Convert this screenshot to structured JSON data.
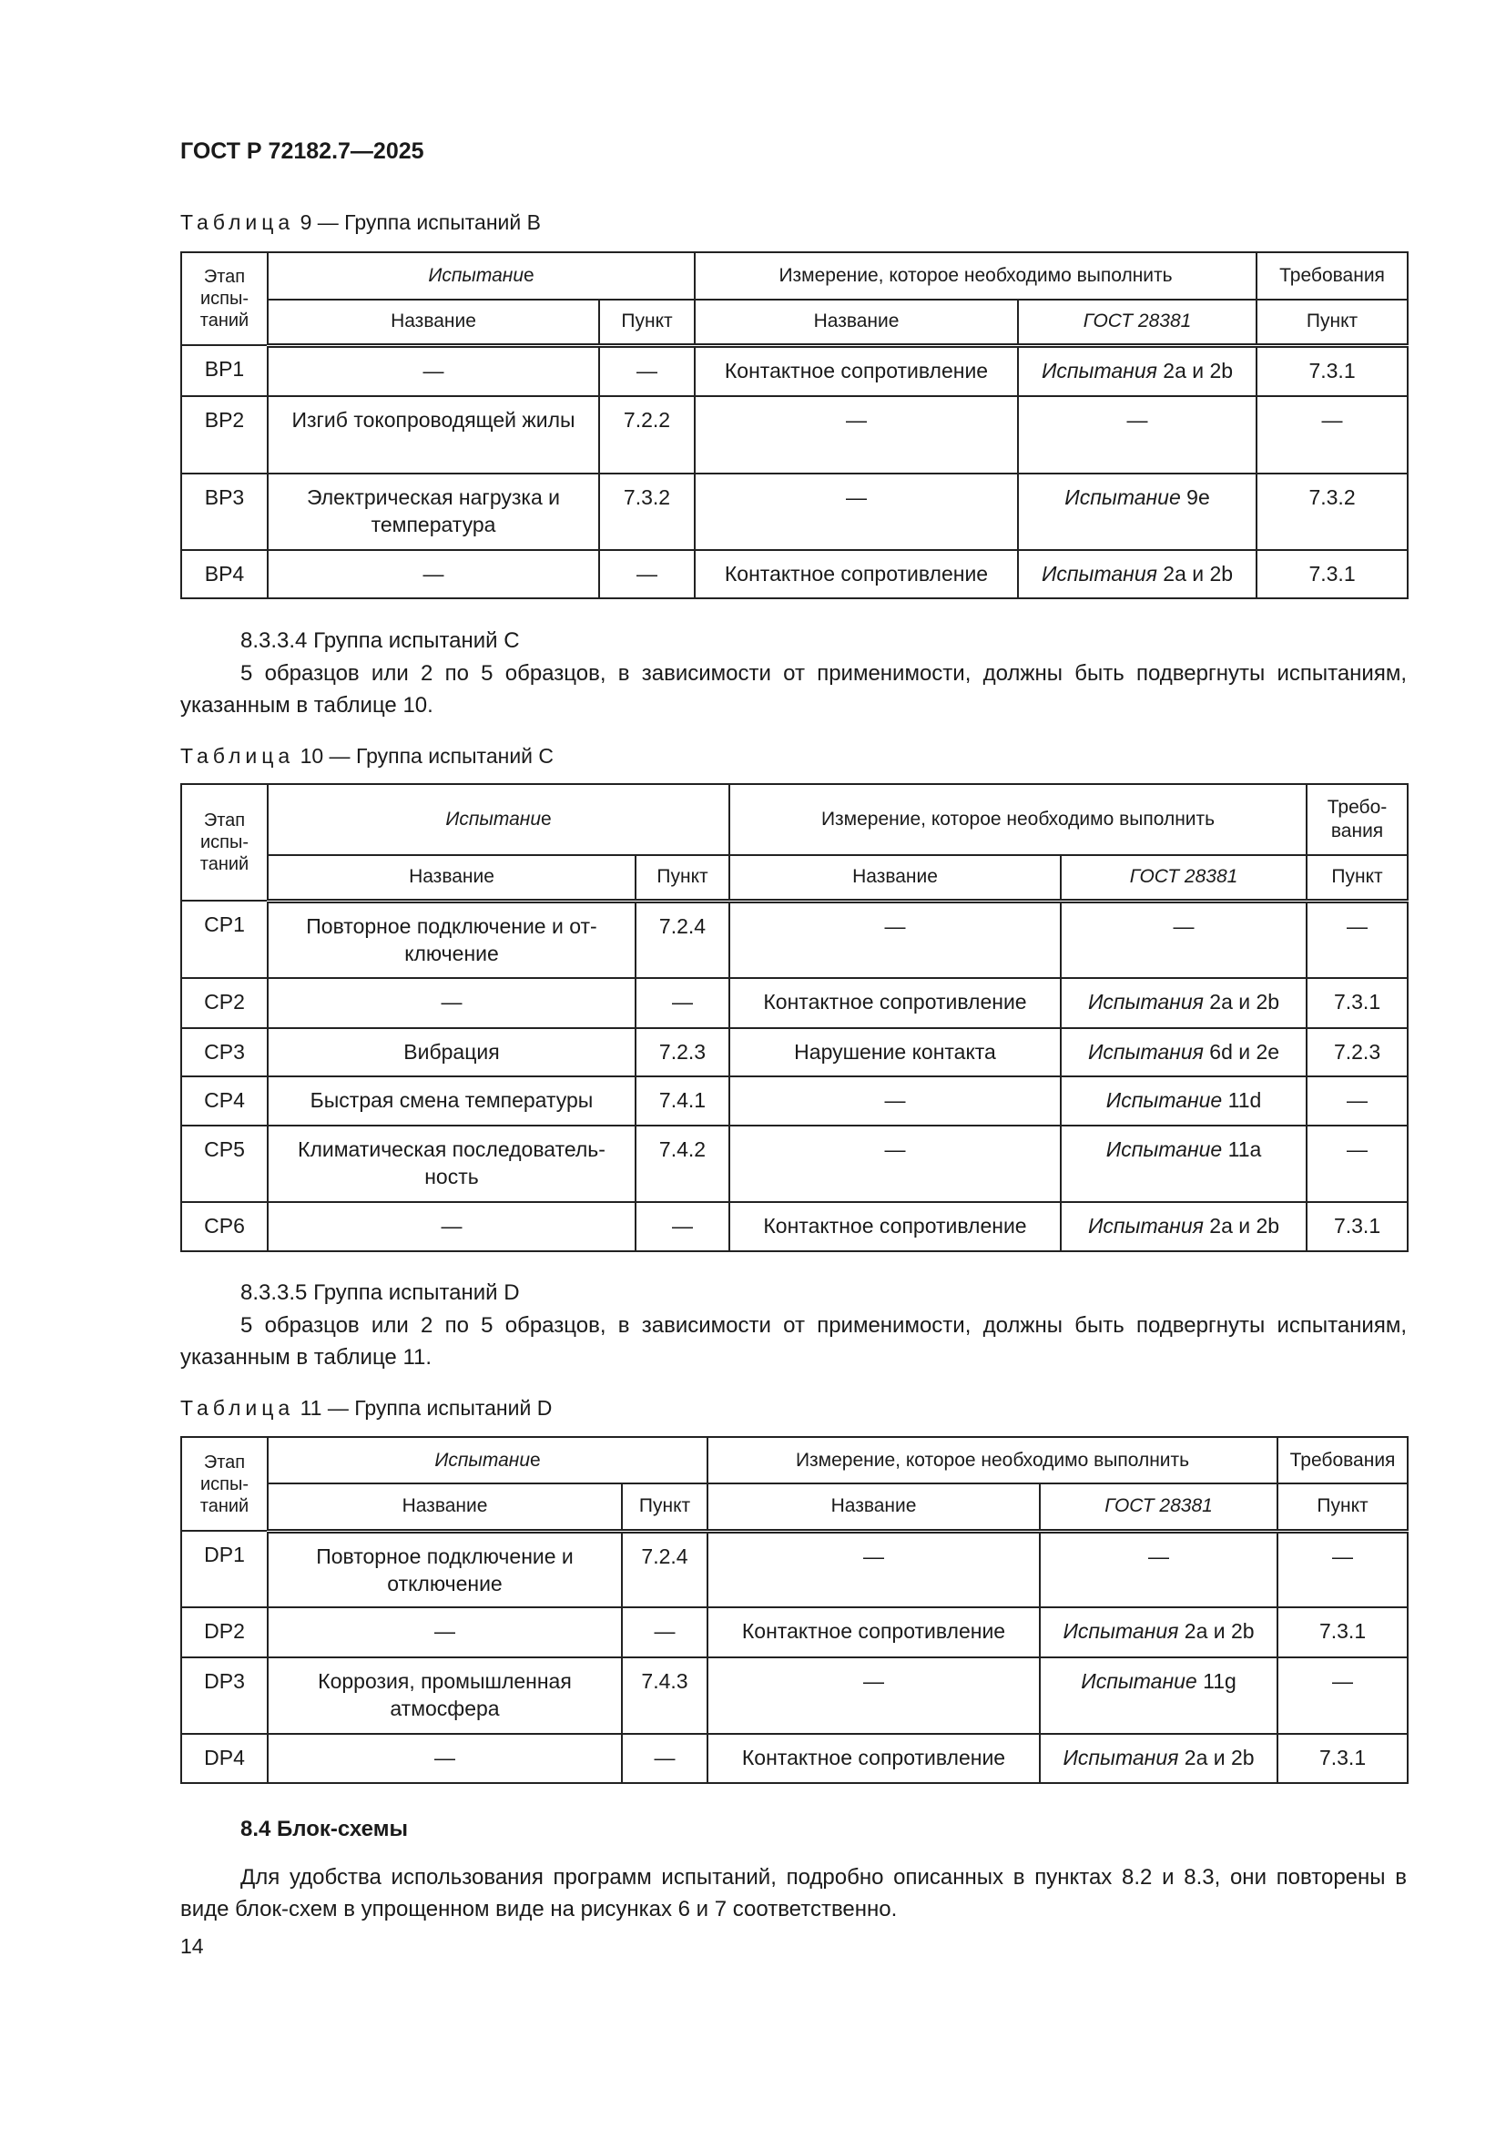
{
  "header": "ГОСТ Р 72182.7—2025",
  "headers": {
    "stage": "Этап испы-таний",
    "test": "Испытание",
    "measure": "Измерение, которое необходимо выполнить",
    "req": "Требования",
    "req_short": "Требо-вания",
    "name": "Название",
    "clause": "Пункт",
    "gost": "ГОСТ 28381"
  },
  "table9": {
    "caption_prefix": "Таблица",
    "caption": "9 — Группа испытаний B",
    "rows": [
      [
        "BP1",
        "—",
        "—",
        "Контактное сопротивление",
        "Испытания 2a и 2b",
        "7.3.1"
      ],
      [
        "BP2",
        "Изгиб токопроводящей жилы",
        "7.2.2",
        "—",
        "—",
        "—"
      ],
      [
        "BP3",
        "Электрическая нагрузка и температура",
        "7.3.2",
        "—",
        "Испытание 9e",
        "7.3.2"
      ],
      [
        "BP4",
        "—",
        "—",
        "Контактное сопротивление",
        "Испытания 2a и 2b",
        "7.3.1"
      ]
    ]
  },
  "sec_c": {
    "title": "8.3.3.4  Группа испытаний C",
    "text": "5 образцов или 2 по 5 образцов, в зависимости от применимости, должны быть подвергнуты испытаниям, указанным в таблице 10."
  },
  "table10": {
    "caption_prefix": "Таблица",
    "caption": "10 — Группа испытаний C",
    "rows": [
      [
        "CP1",
        "Повторное подключение и от-ключение",
        "7.2.4",
        "—",
        "—",
        "—"
      ],
      [
        "CP2",
        "—",
        "—",
        "Контактное сопротивление",
        "Испытания 2a и 2b",
        "7.3.1"
      ],
      [
        "CP3",
        "Вибрация",
        "7.2.3",
        "Нарушение контакта",
        "Испытания 6d и 2e",
        "7.2.3"
      ],
      [
        "CP4",
        "Быстрая смена температуры",
        "7.4.1",
        "—",
        "Испытание 11d",
        "—"
      ],
      [
        "CP5",
        "Климатическая последователь-ность",
        "7.4.2",
        "—",
        "Испытание 11a",
        "—"
      ],
      [
        "CP6",
        "—",
        "—",
        "Контактное сопротивление",
        "Испытания 2a и 2b",
        "7.3.1"
      ]
    ]
  },
  "sec_d": {
    "title": "8.3.3.5  Группа испытаний D",
    "text": "5 образцов или 2 по 5 образцов, в зависимости от применимости, должны быть подвергнуты испытаниям, указанным в таблице 11."
  },
  "table11": {
    "caption_prefix": "Таблица",
    "caption": "11 — Группа испытаний D",
    "rows": [
      [
        "DP1",
        "Повторное подключение и отключение",
        "7.2.4",
        "—",
        "—",
        "—"
      ],
      [
        "DP2",
        "—",
        "—",
        "Контактное сопротивление",
        "Испытания 2a и 2b",
        "7.3.1"
      ],
      [
        "DP3",
        "Коррозия, промышленная атмосфера",
        "7.4.3",
        "—",
        "Испытание 11g",
        "—"
      ],
      [
        "DP4",
        "—",
        "—",
        "Контактное сопротивление",
        "Испытания 2a и 2b",
        "7.3.1"
      ]
    ]
  },
  "sec_84": {
    "title": "8.4 Блок-схемы",
    "text": "Для удобства использования программ испытаний, подробно описанных в пунктах 8.2 и 8.3, они повторены в виде блок-схем в упрощенном виде на рисунках 6 и 7 соответственно."
  },
  "page_number": "14"
}
